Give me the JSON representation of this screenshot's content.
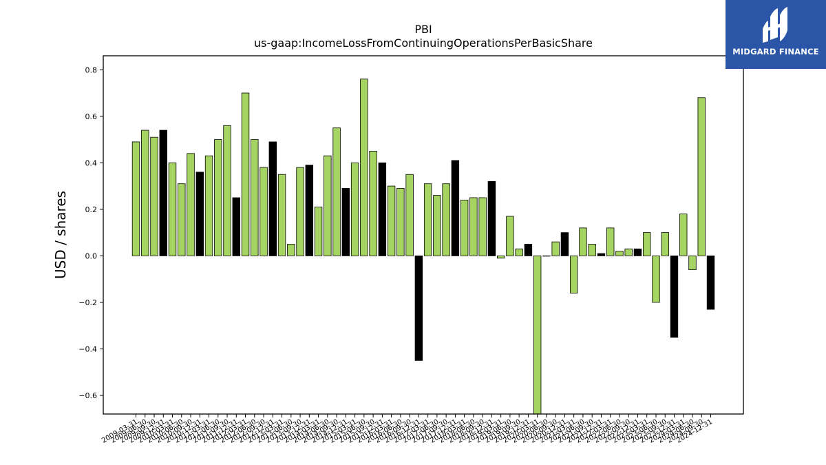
{
  "brand": {
    "name": "MIDGARD FINANCE",
    "bg_color": "#2b56a8",
    "mark_icon": "midgard-logo-mark"
  },
  "chart_data": {
    "type": "bar",
    "title": "PBI",
    "subtitle": "us-gaap:IncomeLossFromContinuingOperationsPerBasicShare",
    "xlabel": "",
    "ylabel": "USD / shares",
    "ylim": [
      -0.68,
      0.86
    ],
    "yticks": [
      -0.6,
      -0.4,
      -0.2,
      0.0,
      0.2,
      0.4,
      0.6,
      0.8
    ],
    "grid": false,
    "colors": {
      "quarter": "#a6d463",
      "annual": "#000000",
      "edge": "#000000"
    },
    "categories": [
      "2009-03-31",
      "2009-06-30",
      "2009-09-30",
      "2009-12-31",
      "2010-03-31",
      "2010-06-30",
      "2010-09-30",
      "2010-12-31",
      "2011-03-31",
      "2011-06-30",
      "2011-09-30",
      "2011-12-31",
      "2012-03-31",
      "2012-06-30",
      "2012-09-30",
      "2012-12-31",
      "2013-03-31",
      "2013-06-30",
      "2013-09-30",
      "2013-12-31",
      "2014-03-31",
      "2014-06-30",
      "2014-09-30",
      "2014-12-31",
      "2015-03-31",
      "2015-06-30",
      "2015-09-30",
      "2015-12-31",
      "2016-03-31",
      "2016-06-30",
      "2016-09-30",
      "2016-12-31",
      "2017-03-31",
      "2017-06-30",
      "2017-09-30",
      "2017-12-31",
      "2018-03-31",
      "2018-06-30",
      "2018-09-30",
      "2018-12-31",
      "2019-03-31",
      "2019-06-30",
      "2019-09-30",
      "2019-12-31",
      "2020-03-31",
      "2020-06-30",
      "2020-09-30",
      "2020-12-31",
      "2021-03-31",
      "2021-06-30",
      "2021-09-30",
      "2021-12-31",
      "2022-03-31",
      "2022-06-30",
      "2022-09-30",
      "2022-12-31",
      "2023-03-31",
      "2023-06-30",
      "2023-09-30",
      "2023-12-31",
      "2024-03-31",
      "2024-06-30",
      "2024-09-30",
      "2024-12-31"
    ],
    "values": [
      0.49,
      0.54,
      0.51,
      0.54,
      0.4,
      0.31,
      0.44,
      0.36,
      0.43,
      0.5,
      0.56,
      0.25,
      0.7,
      0.5,
      0.38,
      0.49,
      0.35,
      0.05,
      0.38,
      0.39,
      0.21,
      0.43,
      0.55,
      0.29,
      0.4,
      0.76,
      0.45,
      0.4,
      0.3,
      0.29,
      0.35,
      -0.45,
      0.31,
      0.26,
      0.31,
      0.41,
      0.24,
      0.25,
      0.25,
      0.32,
      -0.01,
      0.17,
      0.03,
      0.05,
      -0.68,
      0.0,
      0.06,
      0.1,
      -0.16,
      0.12,
      0.05,
      0.01,
      0.12,
      0.02,
      0.03,
      0.03,
      0.1,
      -0.2,
      0.1,
      -0.35,
      0.18,
      -0.06,
      0.68,
      -0.23
    ],
    "annual_flags": [
      0,
      0,
      0,
      1,
      0,
      0,
      0,
      1,
      0,
      0,
      0,
      1,
      0,
      0,
      0,
      1,
      0,
      0,
      0,
      1,
      0,
      0,
      0,
      1,
      0,
      0,
      0,
      1,
      0,
      0,
      0,
      1,
      0,
      0,
      0,
      1,
      0,
      0,
      0,
      1,
      0,
      0,
      0,
      1,
      0,
      0,
      0,
      1,
      0,
      0,
      0,
      1,
      0,
      0,
      0,
      1,
      0,
      0,
      0,
      1,
      0,
      0,
      0,
      1
    ]
  }
}
